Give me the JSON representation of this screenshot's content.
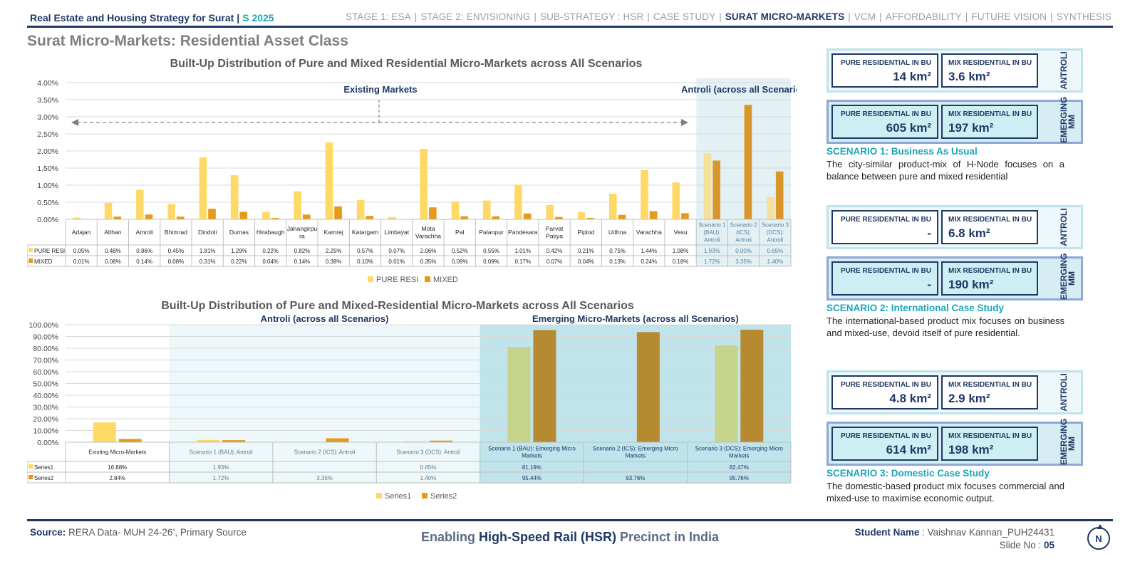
{
  "header": {
    "project_title": "Real Estate and Housing Strategy for Surat",
    "year": "S 2025",
    "nav": [
      {
        "label": "STAGE 1: ESA",
        "active": false
      },
      {
        "label": "STAGE 2: ENVISIONING",
        "active": false
      },
      {
        "label": "SUB-STRATEGY : HSR",
        "active": false
      },
      {
        "label": "CASE STUDY",
        "active": false
      },
      {
        "label": "SURAT MICRO-MARKETS",
        "active": true
      },
      {
        "label": "VCM",
        "active": false
      },
      {
        "label": "AFFORDABILITY",
        "active": false
      },
      {
        "label": "FUTURE VISION",
        "active": false
      },
      {
        "label": "SYNTHESIS",
        "active": false
      }
    ]
  },
  "page_title": "Surat Micro-Markets: Residential Asset Class",
  "chart_data": [
    {
      "type": "bar",
      "title": "Built-Up Distribution of Pure and Mixed Residential Micro-Markets across All Scenarios",
      "categories": [
        "Adajan",
        "Althan",
        "Amroli",
        "Bhimrad",
        "Dindoli",
        "Dumas",
        "Hirabaugh",
        "Jahangirpu ra",
        "Kamrej",
        "Katargam",
        "Limbayat",
        "Mota Varachha",
        "Pal",
        "Palanpur",
        "Pandesara",
        "Parvat Patiya",
        "Piplod",
        "Udhna",
        "Varachha",
        "Vesu",
        "Scenario 1 (BAU): Antroli",
        "Scenario 2 (ICS): Antroli",
        "Scenario 3 (DCS): Antroli"
      ],
      "series": [
        {
          "name": "PURE RESI",
          "values": [
            0.05,
            0.48,
            0.86,
            0.45,
            1.81,
            1.29,
            0.22,
            0.82,
            2.25,
            0.57,
            0.07,
            2.06,
            0.52,
            0.55,
            1.01,
            0.42,
            0.21,
            0.75,
            1.44,
            1.08,
            1.93,
            0.0,
            0.65
          ],
          "labels": [
            "0.05%",
            "0.48%",
            "0.86%",
            "0.45%",
            "1.81%",
            "1.29%",
            "0.22%",
            "0.82%",
            "2.25%",
            "0.57%",
            "0.07%",
            "2.06%",
            "0.52%",
            "0.55%",
            "1.01%",
            "0.42%",
            "0.21%",
            "0.75%",
            "1.44%",
            "1.08%",
            "1.93%",
            "0.00%",
            "0.65%"
          ],
          "color": "#ffd966",
          "color_highlight": "#f4e29a"
        },
        {
          "name": "MIXED",
          "values": [
            0.01,
            0.08,
            0.14,
            0.08,
            0.31,
            0.22,
            0.04,
            0.14,
            0.38,
            0.1,
            0.01,
            0.35,
            0.09,
            0.09,
            0.17,
            0.07,
            0.04,
            0.13,
            0.24,
            0.18,
            1.72,
            3.35,
            1.4
          ],
          "labels": [
            "0.01%",
            "0.08%",
            "0.14%",
            "0.08%",
            "0.31%",
            "0.22%",
            "0.04%",
            "0.14%",
            "0.38%",
            "0.10%",
            "0.01%",
            "0.35%",
            "0.09%",
            "0.09%",
            "0.17%",
            "0.07%",
            "0.04%",
            "0.13%",
            "0.24%",
            "0.18%",
            "1.72%",
            "3.35%",
            "1.40%"
          ],
          "color": "#e59a19",
          "color_highlight": "#d9962a"
        }
      ],
      "yticks": [
        "0.00%",
        "0.50%",
        "1.00%",
        "1.50%",
        "2.00%",
        "2.50%",
        "3.00%",
        "3.50%",
        "4.00%"
      ],
      "ylim": [
        0,
        4
      ],
      "grid": true,
      "legend": "bottom",
      "annotations": {
        "existing": "Existing Markets",
        "antroli": "Antroli (across all Scenarios)"
      }
    },
    {
      "type": "bar",
      "title": "Built-Up Distribution of Pure and Mixed-Residential Micro-Markets across All Scenarios",
      "categories": [
        "Existing Micro-Markets",
        "Scenario 1 (BAU): Antroli",
        "Scenario 2 (ICS): Antroli",
        "Scenario 3 (DCS): Antroli",
        "Scenario 1 (BAU): Emerging Micro Markets",
        "Scenario 2 (ICS): Emerging Micro Markets",
        "Scenario 3 (DCS): Emerging Micro Markets"
      ],
      "series": [
        {
          "name": "Series1",
          "values": [
            16.88,
            1.93,
            0,
            0.65,
            81.19,
            0,
            82.47
          ],
          "labels": [
            "16.88%",
            "1.93%",
            "",
            "0.65%",
            "81.19%",
            "",
            "82.47%"
          ],
          "color": "#ffd966",
          "color_highlight": "#c5d48a"
        },
        {
          "name": "Series2",
          "values": [
            2.84,
            1.72,
            3.35,
            1.4,
            95.44,
            93.76,
            95.76
          ],
          "labels": [
            "2.84%",
            "1.72%",
            "3.35%",
            "1.40%",
            "95.44%",
            "93.76%",
            "95.76%"
          ],
          "color": "#e59a19",
          "color_highlight": "#b58a30"
        }
      ],
      "yticks": [
        "0.00%",
        "10.00%",
        "20.00%",
        "30.00%",
        "40.00%",
        "50.00%",
        "60.00%",
        "70.00%",
        "80.00%",
        "90.00%",
        "100.00%"
      ],
      "ylim": [
        0,
        100
      ],
      "grid": true,
      "legend": "bottom",
      "annotations": {
        "antroli": "Antroli (across all Scenarios)",
        "emerging": "Emerging Micro-Markets (across all Scenarios)"
      }
    }
  ],
  "scenarios": [
    {
      "antroli": {
        "pure_label": "PURE RESIDENTIAL IN BU",
        "pure_value": "14 km²",
        "mix_label": "MIX RESIDENTIAL IN BU",
        "mix_value": "3.6 km²",
        "tag": "ANTROLI"
      },
      "emerging": {
        "pure_label": "PURE RESIDENTIAL IN BU",
        "pure_value": "605 km²",
        "mix_label": "MIX RESIDENTIAL IN BU",
        "mix_value": "197 km²",
        "tag": "EMERGING MM"
      },
      "title": "SCENARIO 1: Business As Usual",
      "description": "The city-similar product-mix of H-Node focuses on a balance between pure and mixed residential"
    },
    {
      "antroli": {
        "pure_label": "PURE RESIDENTIAL IN BU",
        "pure_value": "-",
        "mix_label": "MIX RESIDENTIAL IN BU",
        "mix_value": "6.8 km²",
        "tag": "ANTROLI"
      },
      "emerging": {
        "pure_label": "PURE RESIDENTIAL IN BU",
        "pure_value": "-",
        "mix_label": "MIX RESIDENTIAL IN BU",
        "mix_value": "190 km²",
        "tag": "EMERGING MM"
      },
      "title": "SCENARIO 2: International Case Study",
      "description": "The international-based product mix focuses on business and mixed-use, devoid itself of pure residential."
    },
    {
      "antroli": {
        "pure_label": "PURE RESIDENTIAL IN BU",
        "pure_value": "4.8 km²",
        "mix_label": "MIX RESIDENTIAL IN BU",
        "mix_value": "2.9 km²",
        "tag": "ANTROLI"
      },
      "emerging": {
        "pure_label": "PURE RESIDENTIAL IN BU",
        "pure_value": "614 km²",
        "mix_label": "MIX RESIDENTIAL IN BU",
        "mix_value": "198 km²",
        "tag": "EMERGING MM"
      },
      "title": "SCENARIO 3: Domestic Case Study",
      "description": "The domestic-based product mix focuses commercial and mixed-use to maximise economic output."
    }
  ],
  "footer": {
    "source_label": "Source:",
    "source_text": "RERA Data- MUH 24-26’, Primary Source",
    "tagline_pre": "Enabling ",
    "tagline_hl": "High-Speed Rail (HSR)",
    "tagline_post": " Precinct in India",
    "student_label": "Student Name",
    "student_name": " : Vaishnav Kannan_PUH24431",
    "slide_label": "Slide No : ",
    "slide_no": "05",
    "north_letter": "N"
  }
}
